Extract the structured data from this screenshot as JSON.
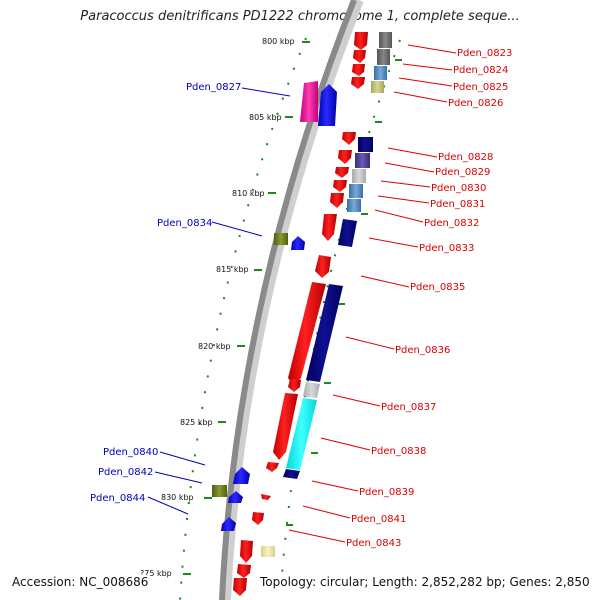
{
  "title": "Paracoccus denitrificans PD1222 chromosome 1, complete seque...",
  "footer": {
    "accession": "Accession: NC_008686",
    "topology": "Topology: circular; Length: 2,852,282 bp; Genes: 2,850"
  },
  "ticks": [
    {
      "label": "800 kbp"
    },
    {
      "label": "805 kbp"
    },
    {
      "label": "810 kbp"
    },
    {
      "label": "815 kbp"
    },
    {
      "label": "820 kbp"
    },
    {
      "label": "825 kbp"
    },
    {
      "label": "830 kbp"
    },
    {
      "label": "?75 kbp"
    }
  ],
  "gene_labels_right": [
    {
      "name": "Pden_0823"
    },
    {
      "name": "Pden_0824"
    },
    {
      "name": "Pden_0825"
    },
    {
      "name": "Pden_0826"
    },
    {
      "name": "Pden_0828"
    },
    {
      "name": "Pden_0829"
    },
    {
      "name": "Pden_0830"
    },
    {
      "name": "Pden_0831"
    },
    {
      "name": "Pden_0832"
    },
    {
      "name": "Pden_0833"
    },
    {
      "name": "Pden_0835"
    },
    {
      "name": "Pden_0836"
    },
    {
      "name": "Pden_0837"
    },
    {
      "name": "Pden_0838"
    },
    {
      "name": "Pden_0839"
    },
    {
      "name": "Pden_0841"
    },
    {
      "name": "Pden_0843"
    }
  ],
  "gene_labels_left": [
    {
      "name": "Pden_0827"
    },
    {
      "name": "Pden_0834"
    },
    {
      "name": "Pden_0840"
    },
    {
      "name": "Pden_0842"
    },
    {
      "name": "Pden_0844"
    }
  ],
  "colors": {
    "forward_gene": "#ff0000",
    "reverse_gene": "#0000ff",
    "label_right": "#dd0000",
    "label_left": "#0000bb",
    "backbone": "#888888",
    "tick": "#1a8a1a"
  }
}
